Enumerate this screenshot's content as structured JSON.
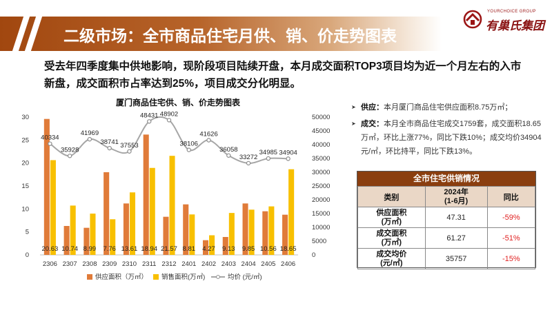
{
  "header": {
    "title": "二级市场：全市商品住宅月供、销、价走势图表"
  },
  "logo": {
    "sub": "YOURCHOICE GROUP",
    "name": "有巢氏集团"
  },
  "summary": "受去年四季度集中供地影响，现阶段项目陆续开盘，本月成交面积TOP3项目均为近一个月左右的入市新盘，成交面积市占率达到25%，项目成交分化明显。",
  "notes": [
    {
      "label": "供应：",
      "text": "本月厦门商品住宅供应面积8.75万㎡；"
    },
    {
      "label": "成交：",
      "text": "本月全市商品住宅成交1759套，成交面积18.65万㎡，环比上涨77%，同比下跌10%；成交均价34904元/㎡，环比持平，同比下跌13%。"
    }
  ],
  "table": {
    "title": "全市住宅供销情况",
    "headers": [
      "类别",
      "2024年\n(1-6月)",
      "同比"
    ],
    "rows": [
      {
        "cat": "供应面积\n(万㎡)",
        "val": "47.31",
        "yoy": "-59%"
      },
      {
        "cat": "成交面积\n(万㎡)",
        "val": "61.27",
        "yoy": "-51%"
      },
      {
        "cat": "成交均价\n(元/㎡)",
        "val": "35757",
        "yoy": "-15%"
      }
    ]
  },
  "chart_data": {
    "type": "bar",
    "title": "厦门商品住宅供、销、价走势图表",
    "categories": [
      "2306",
      "2307",
      "2308",
      "2309",
      "2310",
      "2311",
      "2312",
      "2401",
      "2402",
      "2403",
      "2404",
      "2405",
      "2406"
    ],
    "series": [
      {
        "name": "供应面积（万㎡）",
        "type": "bar",
        "axis": "left",
        "color": "#e07b39",
        "values": [
          29.6,
          6.3,
          5.9,
          18.0,
          11.2,
          26.2,
          8.3,
          11.0,
          3.2,
          3.9,
          11.2,
          9.5,
          8.75
        ]
      },
      {
        "name": "销售面积(万㎡)",
        "type": "bar",
        "axis": "left",
        "color": "#f8c000",
        "values": [
          20.63,
          10.74,
          8.99,
          7.76,
          13.61,
          18.94,
          21.57,
          8.81,
          4.27,
          9.13,
          9.85,
          10.56,
          18.65
        ]
      },
      {
        "name": "均价  (元/㎡)",
        "type": "line",
        "axis": "right",
        "color": "#a6a6a6",
        "values": [
          40334,
          35928,
          41969,
          38741,
          37553,
          48431,
          48902,
          38106,
          41626,
          36058,
          33272,
          34985,
          34904
        ]
      }
    ],
    "ylim_left": [
      0,
      30
    ],
    "ylim_right": [
      0,
      50000
    ],
    "yticks_left": [
      0,
      5,
      10,
      15,
      20,
      25,
      30
    ],
    "yticks_right": [
      0,
      5000,
      10000,
      15000,
      20000,
      25000,
      30000,
      35000,
      40000,
      45000,
      50000
    ],
    "data_labels": {
      "bars": [
        "20.63",
        "10.74",
        "8.99",
        "7.76",
        "13.61",
        "18.94",
        "21.57",
        "8.81",
        "4.27",
        "9.13",
        "9.85",
        "10.56",
        "18.65"
      ],
      "line": [
        "40334",
        "35928",
        "41969",
        "38741",
        "37553",
        "48431",
        "48902",
        "38106",
        "41626",
        "36058",
        "33272",
        "34985",
        "34904"
      ]
    },
    "legend_position": "bottom",
    "grid": false
  }
}
